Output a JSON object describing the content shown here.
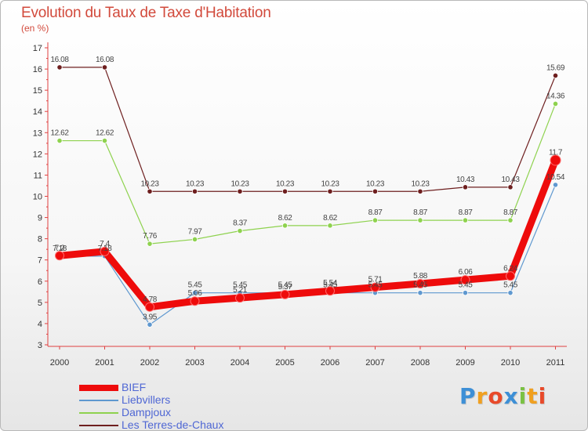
{
  "title": "Evolution du Taux de Taxe d'Habitation",
  "subtitle": "(en %)",
  "logo": {
    "text": "Proxiti",
    "colors": [
      "#3d8fd6",
      "#f0a020",
      "#e84a2a",
      "#3d8fd6",
      "#7ac143",
      "#f0a020",
      "#e84a2a"
    ]
  },
  "chart_data": {
    "type": "line",
    "x": [
      "2000",
      "2001",
      "2002",
      "2003",
      "2004",
      "2005",
      "2006",
      "2007",
      "2008",
      "2009",
      "2010",
      "2011"
    ],
    "ylim": [
      3,
      17
    ],
    "yticks": [
      "3",
      "4",
      "5",
      "6",
      "7",
      "8",
      "9",
      "10",
      "11",
      "12",
      "13",
      "14",
      "15",
      "16",
      "17"
    ],
    "grid": false,
    "legend_position": "bottom-left",
    "series": [
      {
        "name": "Les Terres-de-Chaux",
        "color": "#6e1f1f",
        "values": [
          16.08,
          16.08,
          10.23,
          10.23,
          10.23,
          10.23,
          10.23,
          10.23,
          10.23,
          10.43,
          10.43,
          15.69
        ],
        "labels": [
          "16.08",
          "16.08",
          "10.23",
          "10.23",
          "10.23",
          "10.23",
          "10.23",
          "10.23",
          "10.23",
          "10.43",
          "10.43",
          "15.69"
        ]
      },
      {
        "name": "Dampjoux",
        "color": "#8ed24e",
        "values": [
          12.62,
          12.62,
          7.76,
          7.97,
          8.37,
          8.62,
          8.62,
          8.87,
          8.87,
          8.87,
          8.87,
          14.36
        ],
        "labels": [
          "12.62",
          "12.62",
          "7.76",
          "7.97",
          "8.37",
          "8.62",
          "8.62",
          "8.87",
          "8.87",
          "8.87",
          "8.87",
          "14.36"
        ]
      },
      {
        "name": "Liebvillers",
        "color": "#5f98cf",
        "values": [
          7.18,
          7.18,
          3.95,
          5.45,
          5.45,
          5.45,
          5.45,
          5.45,
          5.45,
          5.45,
          5.45,
          10.54
        ],
        "labels": [
          "7.18",
          "7.18",
          "3.95",
          "5.45",
          "5.45",
          "5.45",
          "5.45",
          "5.45",
          "5.45",
          "5.45",
          "5.45",
          "10.54"
        ]
      },
      {
        "name": "BIEF",
        "color": "#ee0b0b",
        "values": [
          7.2,
          7.4,
          4.78,
          5.06,
          5.21,
          5.37,
          5.54,
          5.71,
          5.88,
          6.06,
          6.24,
          11.7
        ],
        "labels": [
          "7.2",
          "7.4",
          "4.78",
          "5.06",
          "5.21",
          "5.37",
          "5.54",
          "5.71",
          "5.88",
          "6.06",
          "6.24",
          "11.7"
        ]
      }
    ]
  },
  "legend": [
    {
      "label": "BIEF",
      "color": "#ee0b0b",
      "thick": true
    },
    {
      "label": "Liebvillers",
      "color": "#5f98cf",
      "thick": false
    },
    {
      "label": "Dampjoux",
      "color": "#8ed24e",
      "thick": false
    },
    {
      "label": "Les Terres-de-Chaux",
      "color": "#6e1f1f",
      "thick": false
    }
  ]
}
